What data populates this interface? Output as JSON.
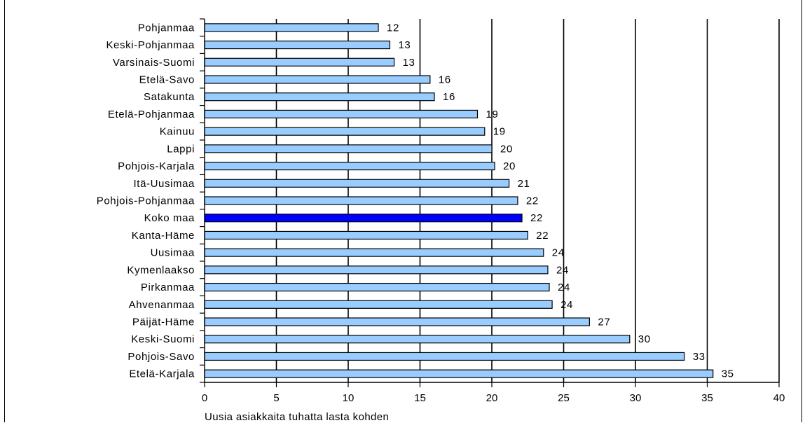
{
  "chart_data": {
    "type": "bar",
    "orientation": "horizontal",
    "categories": [
      "Pohjanmaa",
      "Keski-Pohjanmaa",
      "Varsinais-Suomi",
      "Etelä-Savo",
      "Satakunta",
      "Etelä-Pohjanmaa",
      "Kainuu",
      "Lappi",
      "Pohjois-Karjala",
      "Itä-Uusimaa",
      "Pohjois-Pohjanmaa",
      "Koko maa",
      "Kanta-Häme",
      "Uusimaa",
      "Kymenlaakso",
      "Pirkanmaa",
      "Ahvenanmaa",
      "Päijät-Häme",
      "Keski-Suomi",
      "Pohjois-Savo",
      "Etelä-Karjala"
    ],
    "values": [
      12.1,
      12.9,
      13.2,
      15.7,
      16.0,
      19.0,
      19.5,
      20.0,
      20.2,
      21.2,
      21.8,
      22.1,
      22.5,
      23.6,
      23.9,
      24.0,
      24.2,
      26.8,
      29.6,
      33.4,
      35.4
    ],
    "value_labels": [
      "12",
      "13",
      "13",
      "16",
      "16",
      "19",
      "19",
      "20",
      "20",
      "21",
      "22",
      "22",
      "22",
      "24",
      "24",
      "24",
      "24",
      "27",
      "30",
      "33",
      "35"
    ],
    "highlight_category": "Koko maa",
    "colors": {
      "bar": "#99ccff",
      "highlight": "#0000ff",
      "edge": "#000000",
      "grid": "#000000"
    },
    "xlim": [
      0,
      40
    ],
    "xticks": [
      "0",
      "5",
      "10",
      "15",
      "20",
      "25",
      "30",
      "35",
      "40"
    ],
    "xlabel": "Uusia asiakkaita tuhatta lasta kohden",
    "title": "",
    "grid": "vertical",
    "legend": "none"
  }
}
